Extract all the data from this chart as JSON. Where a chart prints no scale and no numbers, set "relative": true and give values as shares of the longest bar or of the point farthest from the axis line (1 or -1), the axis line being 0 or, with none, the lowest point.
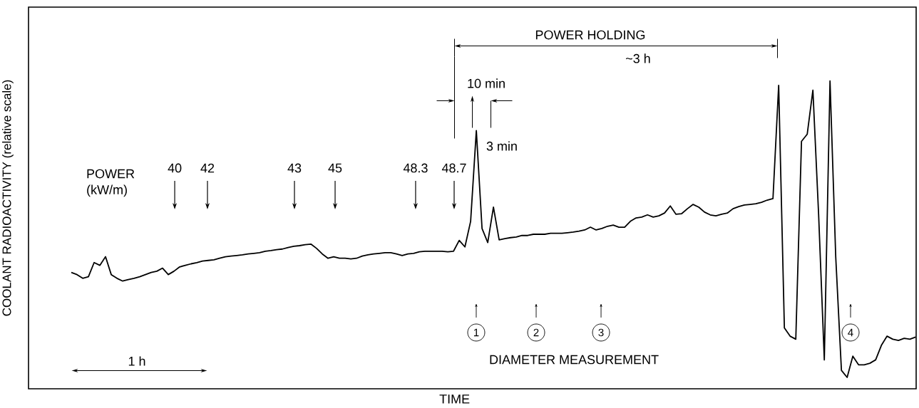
{
  "chart_data": {
    "type": "line",
    "relative": true,
    "xlabel": "TIME",
    "ylabel": "COOLANT RADIOACTIVITY (relative scale)",
    "categories": [
      null,
      null,
      null,
      null,
      null,
      null,
      null,
      null,
      null,
      null,
      null,
      null,
      null,
      null,
      null,
      null,
      null,
      null,
      null,
      null,
      null,
      null,
      null,
      null,
      null,
      null,
      null,
      null,
      null,
      null,
      null,
      null,
      null,
      null,
      null,
      null,
      null,
      null,
      null,
      null,
      null,
      null,
      null,
      null,
      null,
      null,
      null,
      null,
      null,
      null,
      null,
      null,
      null,
      null,
      null,
      null,
      null,
      null,
      null,
      null,
      null,
      null,
      null,
      null,
      null,
      null,
      null,
      null,
      null,
      null,
      null,
      null,
      null,
      null,
      null,
      null,
      null,
      null,
      null,
      null,
      null,
      null,
      null,
      null,
      null,
      null,
      null,
      null,
      null,
      null,
      null,
      null,
      null,
      null,
      null,
      null,
      null,
      null,
      null,
      null,
      null,
      null,
      null,
      null,
      null,
      null,
      null,
      null,
      null,
      null,
      null,
      null,
      null,
      null,
      null,
      null,
      null,
      null,
      null,
      null,
      null,
      null,
      null,
      null,
      null,
      null,
      null,
      null,
      null,
      null,
      null,
      null,
      null,
      null,
      null,
      null,
      null,
      null,
      null,
      null,
      null,
      null,
      null,
      null,
      null,
      null,
      null,
      null,
      null
    ],
    "series": [
      {
        "color": "#000000",
        "values": [
          0.378,
          0.371,
          0.359,
          0.364,
          0.41,
          0.401,
          0.429,
          0.371,
          0.359,
          0.35,
          0.355,
          0.359,
          0.364,
          0.371,
          0.378,
          0.382,
          0.392,
          0.371,
          0.382,
          0.396,
          0.401,
          0.406,
          0.41,
          0.415,
          0.417,
          0.419,
          0.424,
          0.429,
          0.431,
          0.433,
          0.435,
          0.438,
          0.44,
          0.442,
          0.447,
          0.449,
          0.452,
          0.454,
          0.459,
          0.463,
          0.465,
          0.468,
          0.47,
          0.456,
          0.438,
          0.424,
          0.429,
          0.424,
          0.424,
          0.422,
          0.424,
          0.431,
          0.435,
          0.438,
          0.44,
          0.442,
          0.442,
          0.438,
          0.433,
          0.438,
          0.44,
          0.445,
          0.447,
          0.447,
          0.447,
          0.447,
          0.445,
          0.447,
          0.482,
          0.461,
          0.544,
          0.839,
          0.521,
          0.475,
          0.59,
          0.484,
          0.488,
          0.491,
          0.493,
          0.498,
          0.498,
          0.502,
          0.502,
          0.502,
          0.505,
          0.505,
          0.505,
          0.507,
          0.509,
          0.512,
          0.516,
          0.525,
          0.516,
          0.521,
          0.528,
          0.532,
          0.525,
          0.525,
          0.544,
          0.555,
          0.558,
          0.565,
          0.558,
          0.562,
          0.571,
          0.594,
          0.567,
          0.569,
          0.585,
          0.599,
          0.59,
          0.574,
          0.565,
          0.562,
          0.567,
          0.571,
          0.585,
          0.592,
          0.597,
          0.599,
          0.601,
          0.606,
          0.613,
          0.618,
          0.986,
          0.198,
          0.171,
          0.161,
          0.804,
          0.827,
          0.97,
          0.567,
          0.094,
          1.0,
          0.429,
          0.06,
          0.037,
          0.106,
          0.078,
          0.078,
          0.083,
          0.094,
          0.141,
          0.171,
          0.161,
          0.157,
          0.164,
          0.161,
          0.168
        ]
      }
    ],
    "annotations": [
      "POWER",
      "(kW/m)",
      "40",
      "42",
      "43",
      "45",
      "48.3",
      "48.7",
      "POWER HOLDING",
      "~3 h",
      "10 min",
      "3 min",
      "1 h",
      "1",
      "2",
      "3",
      "4",
      "DIAMETER MEASUREMENT"
    ]
  }
}
